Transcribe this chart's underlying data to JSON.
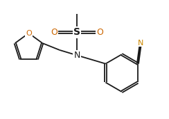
{
  "bg_color": "#ffffff",
  "line_color": "#1a1a1a",
  "N_color": "#1a1a1a",
  "O_color": "#cc6600",
  "S_color": "#1a1a1a",
  "CN_N_color": "#cc8800",
  "figsize": [
    2.44,
    1.71
  ],
  "dpi": 100,
  "xlim": [
    0,
    10
  ],
  "ylim": [
    0,
    7
  ]
}
